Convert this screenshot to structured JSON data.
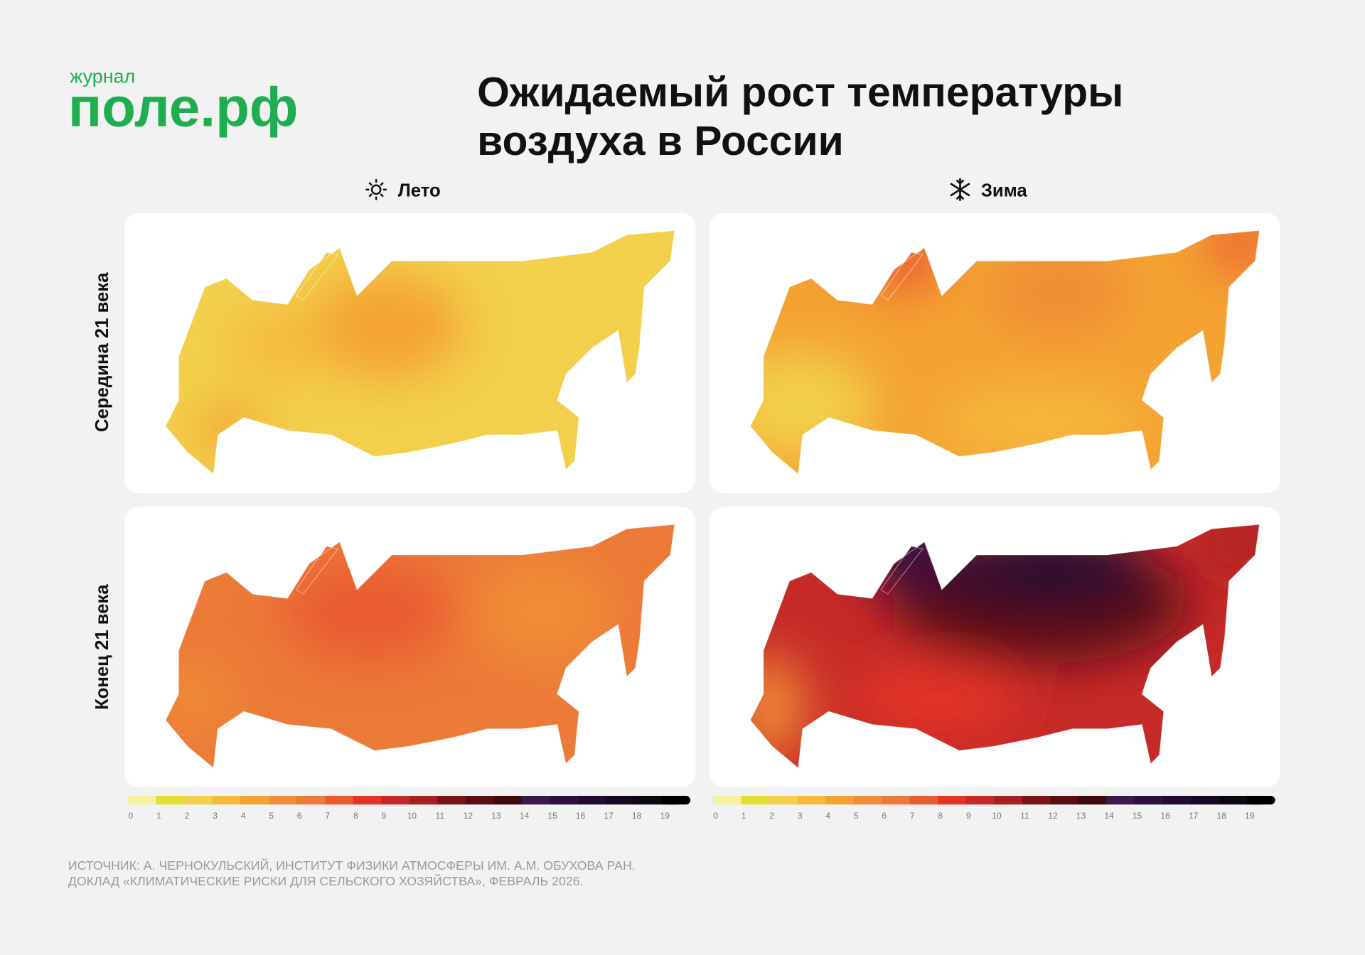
{
  "header": {
    "logo_small": "журнал",
    "logo": "поле.рф",
    "title_lines": [
      "Ожидаемый рост температуры",
      "воздуха в России"
    ]
  },
  "columns": [
    "Лето",
    "Зима"
  ],
  "rows": [
    "Середина 21 века",
    "Конец 21 века"
  ],
  "legend": {
    "ticks": [
      0,
      1,
      2,
      3,
      4,
      5,
      6,
      7,
      8,
      9,
      10,
      11,
      12,
      13,
      14,
      15,
      16,
      17,
      18,
      19
    ],
    "colors": [
      "#f6f19c",
      "#e4de34",
      "#f2d04c",
      "#f5b93e",
      "#f4a232",
      "#f08d36",
      "#ec7a38",
      "#ea5c30",
      "#e43426",
      "#c62a28",
      "#a62024",
      "#7a1418",
      "#5a0e14",
      "#3e0a12",
      "#3a1a4a",
      "#2e1040",
      "#230a30",
      "#180722",
      "#0e0610",
      "#000000"
    ]
  },
  "source": [
    "ИСТОЧНИК: А. ЧЕРНОКУЛЬСКИЙ, ИНСТИТУТ ФИЗИКИ АТМОСФЕРЫ ИМ. А.М. ОБУХОВА РАН.",
    "ДОКЛАД «КЛИМАТИЧЕСКИЕ РИСКИ ДЛЯ СЕЛЬСКОГО ХОЗЯЙСТВА», ФЕВРАЛЬ 2026."
  ]
}
